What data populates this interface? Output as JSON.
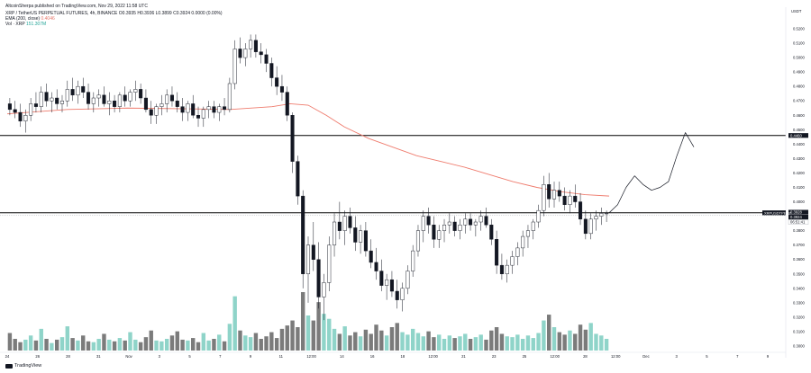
{
  "header": {
    "published": "AltcoinSherpa published on TradingView.com, Nov 29, 2022 11:58 UTC",
    "symbol_line": "XRP / TetherUS PERPETUAL FUTURES, 4h, BINANCE O0.3935 H0.3936 L0.3899 C0.3924 0.0000 (0.00%)",
    "ema_label": "EMA (200, close)",
    "ema_value": "0.4046",
    "vol_label": "Vol · XRP",
    "vol_value": "151.307M"
  },
  "currency_label": "USDT",
  "footer": {
    "brand": "TradingView"
  },
  "colors": {
    "up": "#26a69a",
    "down": "#131722",
    "ema": "#ef7c6e",
    "volume_up": "#8fd4c9",
    "volume_down": "#7b7b7b",
    "line": "#000000"
  },
  "chart_data": {
    "type": "candlestick",
    "timeframe": "4h",
    "y_ticks": [
      "0.5200",
      "0.5100",
      "0.5000",
      "0.4900",
      "0.4800",
      "0.4700",
      "0.4600",
      "0.4500",
      "0.4400",
      "0.4300",
      "0.4200",
      "0.4100",
      "0.4000",
      "0.3900",
      "0.3800",
      "0.3700",
      "0.3600",
      "0.3500",
      "0.3400",
      "0.3300",
      "0.3200",
      "0.3100",
      "0.3000"
    ],
    "x_ticks": [
      "24",
      "26",
      "28",
      "31",
      "Nov",
      "3",
      "5",
      "7",
      "9",
      "11",
      "12:00",
      "14",
      "16",
      "18",
      "12:00",
      "21",
      "23",
      "25",
      "12:00",
      "28",
      "12:00",
      "Dec",
      "3",
      "5",
      "7",
      "9"
    ],
    "price_markers": [
      {
        "label": "0.4460",
        "value": 0.446,
        "style": "dark"
      },
      {
        "label": "0.3928",
        "value": 0.3928,
        "style": "dark"
      },
      {
        "label": "0.3924",
        "value": 0.3924,
        "style": "dark"
      },
      {
        "label": "06:51:41",
        "value": 0.3905,
        "style": "light"
      }
    ],
    "pair_tag": "XRPUSDTPERP",
    "horizontal_lines": [
      0.446,
      0.3924
    ],
    "candles_ohlc": [
      [
        0.468,
        0.472,
        0.46,
        0.464
      ],
      [
        0.464,
        0.47,
        0.458,
        0.462
      ],
      [
        0.462,
        0.468,
        0.452,
        0.456
      ],
      [
        0.456,
        0.464,
        0.448,
        0.46
      ],
      [
        0.46,
        0.472,
        0.456,
        0.468
      ],
      [
        0.468,
        0.476,
        0.462,
        0.466
      ],
      [
        0.466,
        0.48,
        0.462,
        0.476
      ],
      [
        0.476,
        0.482,
        0.466,
        0.47
      ],
      [
        0.47,
        0.476,
        0.462,
        0.472
      ],
      [
        0.472,
        0.478,
        0.464,
        0.468
      ],
      [
        0.468,
        0.474,
        0.462,
        0.47
      ],
      [
        0.47,
        0.484,
        0.466,
        0.478
      ],
      [
        0.478,
        0.486,
        0.47,
        0.474
      ],
      [
        0.474,
        0.484,
        0.468,
        0.48
      ],
      [
        0.48,
        0.486,
        0.472,
        0.476
      ],
      [
        0.476,
        0.482,
        0.464,
        0.468
      ],
      [
        0.468,
        0.476,
        0.462,
        0.472
      ],
      [
        0.472,
        0.478,
        0.466,
        0.474
      ],
      [
        0.474,
        0.48,
        0.466,
        0.468
      ],
      [
        0.468,
        0.476,
        0.46,
        0.47
      ],
      [
        0.47,
        0.474,
        0.462,
        0.466
      ],
      [
        0.466,
        0.476,
        0.462,
        0.474
      ],
      [
        0.474,
        0.48,
        0.466,
        0.47
      ],
      [
        0.47,
        0.478,
        0.466,
        0.476
      ],
      [
        0.476,
        0.484,
        0.47,
        0.478
      ],
      [
        0.478,
        0.482,
        0.468,
        0.472
      ],
      [
        0.472,
        0.478,
        0.462,
        0.464
      ],
      [
        0.464,
        0.47,
        0.454,
        0.46
      ],
      [
        0.46,
        0.468,
        0.454,
        0.466
      ],
      [
        0.466,
        0.474,
        0.46,
        0.468
      ],
      [
        0.468,
        0.478,
        0.462,
        0.474
      ],
      [
        0.474,
        0.48,
        0.466,
        0.47
      ],
      [
        0.47,
        0.476,
        0.462,
        0.466
      ],
      [
        0.466,
        0.472,
        0.456,
        0.462
      ],
      [
        0.462,
        0.47,
        0.456,
        0.468
      ],
      [
        0.468,
        0.474,
        0.458,
        0.46
      ],
      [
        0.46,
        0.466,
        0.452,
        0.458
      ],
      [
        0.458,
        0.466,
        0.452,
        0.464
      ],
      [
        0.464,
        0.47,
        0.458,
        0.466
      ],
      [
        0.466,
        0.47,
        0.458,
        0.462
      ],
      [
        0.462,
        0.468,
        0.456,
        0.466
      ],
      [
        0.466,
        0.472,
        0.46,
        0.464
      ],
      [
        0.464,
        0.486,
        0.462,
        0.482
      ],
      [
        0.482,
        0.512,
        0.478,
        0.506
      ],
      [
        0.506,
        0.514,
        0.496,
        0.5
      ],
      [
        0.5,
        0.51,
        0.494,
        0.506
      ],
      [
        0.506,
        0.516,
        0.5,
        0.512
      ],
      [
        0.512,
        0.516,
        0.5,
        0.504
      ],
      [
        0.504,
        0.51,
        0.496,
        0.502
      ],
      [
        0.502,
        0.506,
        0.49,
        0.496
      ],
      [
        0.496,
        0.5,
        0.48,
        0.486
      ],
      [
        0.486,
        0.494,
        0.474,
        0.48
      ],
      [
        0.48,
        0.488,
        0.47,
        0.476
      ],
      [
        0.476,
        0.48,
        0.456,
        0.46
      ],
      [
        0.46,
        0.462,
        0.42,
        0.428
      ],
      [
        0.428,
        0.432,
        0.398,
        0.404
      ],
      [
        0.404,
        0.408,
        0.34,
        0.35
      ],
      [
        0.35,
        0.376,
        0.33,
        0.37
      ],
      [
        0.37,
        0.386,
        0.352,
        0.36
      ],
      [
        0.36,
        0.372,
        0.326,
        0.334
      ],
      [
        0.334,
        0.35,
        0.318,
        0.344
      ],
      [
        0.344,
        0.376,
        0.338,
        0.37
      ],
      [
        0.37,
        0.392,
        0.362,
        0.386
      ],
      [
        0.386,
        0.4,
        0.374,
        0.38
      ],
      [
        0.38,
        0.394,
        0.37,
        0.39
      ],
      [
        0.39,
        0.396,
        0.378,
        0.382
      ],
      [
        0.382,
        0.39,
        0.366,
        0.372
      ],
      [
        0.372,
        0.384,
        0.364,
        0.38
      ],
      [
        0.38,
        0.386,
        0.362,
        0.366
      ],
      [
        0.366,
        0.374,
        0.354,
        0.358
      ],
      [
        0.358,
        0.368,
        0.346,
        0.352
      ],
      [
        0.352,
        0.36,
        0.338,
        0.342
      ],
      [
        0.342,
        0.35,
        0.332,
        0.346
      ],
      [
        0.346,
        0.352,
        0.334,
        0.338
      ],
      [
        0.338,
        0.346,
        0.326,
        0.332
      ],
      [
        0.332,
        0.344,
        0.324,
        0.34
      ],
      [
        0.34,
        0.356,
        0.336,
        0.352
      ],
      [
        0.352,
        0.37,
        0.348,
        0.366
      ],
      [
        0.366,
        0.384,
        0.362,
        0.38
      ],
      [
        0.38,
        0.394,
        0.372,
        0.39
      ],
      [
        0.39,
        0.396,
        0.378,
        0.384
      ],
      [
        0.384,
        0.39,
        0.368,
        0.374
      ],
      [
        0.374,
        0.384,
        0.368,
        0.38
      ],
      [
        0.38,
        0.388,
        0.372,
        0.384
      ],
      [
        0.384,
        0.392,
        0.378,
        0.386
      ],
      [
        0.386,
        0.39,
        0.376,
        0.38
      ],
      [
        0.38,
        0.388,
        0.374,
        0.384
      ],
      [
        0.384,
        0.392,
        0.378,
        0.388
      ],
      [
        0.388,
        0.392,
        0.38,
        0.384
      ],
      [
        0.384,
        0.388,
        0.376,
        0.386
      ],
      [
        0.386,
        0.394,
        0.38,
        0.39
      ],
      [
        0.39,
        0.396,
        0.382,
        0.384
      ],
      [
        0.384,
        0.388,
        0.37,
        0.374
      ],
      [
        0.374,
        0.38,
        0.35,
        0.356
      ],
      [
        0.356,
        0.364,
        0.346,
        0.35
      ],
      [
        0.35,
        0.36,
        0.344,
        0.356
      ],
      [
        0.356,
        0.366,
        0.35,
        0.362
      ],
      [
        0.362,
        0.372,
        0.356,
        0.368
      ],
      [
        0.368,
        0.38,
        0.362,
        0.376
      ],
      [
        0.376,
        0.384,
        0.368,
        0.38
      ],
      [
        0.38,
        0.388,
        0.374,
        0.386
      ],
      [
        0.386,
        0.398,
        0.382,
        0.394
      ],
      [
        0.394,
        0.418,
        0.39,
        0.412
      ],
      [
        0.412,
        0.42,
        0.396,
        0.402
      ],
      [
        0.402,
        0.414,
        0.396,
        0.408
      ],
      [
        0.408,
        0.414,
        0.4,
        0.404
      ],
      [
        0.404,
        0.41,
        0.394,
        0.398
      ],
      [
        0.398,
        0.408,
        0.392,
        0.404
      ],
      [
        0.404,
        0.412,
        0.396,
        0.4
      ],
      [
        0.4,
        0.406,
        0.384,
        0.388
      ],
      [
        0.388,
        0.394,
        0.374,
        0.378
      ],
      [
        0.378,
        0.392,
        0.374,
        0.388
      ],
      [
        0.388,
        0.394,
        0.38,
        0.39
      ],
      [
        0.39,
        0.396,
        0.384,
        0.392
      ],
      [
        0.392,
        0.394,
        0.386,
        0.392
      ]
    ],
    "volumes": [
      2.1,
      1.4,
      1.0,
      1.3,
      1.8,
      1.2,
      2.6,
      1.4,
      0.9,
      1.3,
      1.6,
      2.9,
      1.5,
      1.2,
      1.8,
      1.1,
      1.0,
      1.4,
      2.0,
      1.3,
      1.1,
      1.5,
      1.2,
      2.2,
      1.3,
      1.0,
      1.6,
      2.4,
      1.2,
      1.1,
      1.4,
      1.8,
      2.3,
      1.3,
      1.2,
      1.5,
      1.0,
      2.1,
      1.2,
      1.4,
      1.9,
      1.1,
      3.2,
      6.5,
      2.4,
      1.8,
      1.6,
      2.1,
      1.4,
      1.7,
      2.2,
      1.5,
      2.6,
      3.0,
      3.6,
      2.8,
      7.0,
      4.2,
      3.6,
      5.8,
      4.4,
      3.8,
      2.6,
      2.0,
      2.9,
      1.8,
      2.2,
      1.7,
      2.5,
      2.0,
      3.1,
      2.4,
      1.8,
      2.8,
      3.3,
      2.2,
      1.9,
      2.6,
      2.1,
      1.7,
      2.3,
      1.6,
      1.9,
      1.4,
      1.8,
      1.5,
      1.7,
      2.0,
      1.4,
      1.6,
      1.9,
      1.3,
      2.4,
      2.8,
      2.0,
      1.7,
      1.6,
      1.9,
      1.4,
      1.8,
      1.5,
      2.1,
      3.6,
      4.3,
      2.8,
      2.2,
      1.9,
      2.4,
      2.0,
      3.1,
      2.5,
      3.3,
      2.0,
      1.8,
      1.4
    ],
    "ema_200": [
      [
        0,
        0.461
      ],
      [
        0.1,
        0.464
      ],
      [
        0.2,
        0.465
      ],
      [
        0.3,
        0.4645
      ],
      [
        0.37,
        0.464
      ],
      [
        0.44,
        0.466
      ],
      [
        0.47,
        0.468
      ],
      [
        0.5,
        0.467
      ],
      [
        0.53,
        0.46
      ],
      [
        0.56,
        0.452
      ],
      [
        0.6,
        0.444
      ],
      [
        0.64,
        0.438
      ],
      [
        0.68,
        0.432
      ],
      [
        0.72,
        0.428
      ],
      [
        0.76,
        0.424
      ],
      [
        0.8,
        0.419
      ],
      [
        0.84,
        0.414
      ],
      [
        0.88,
        0.41
      ],
      [
        0.92,
        0.407
      ],
      [
        0.96,
        0.405
      ],
      [
        1.0,
        0.404
      ]
    ],
    "projection_path": [
      [
        0.3924,
        0
      ],
      [
        0.398,
        1
      ],
      [
        0.41,
        2
      ],
      [
        0.418,
        3
      ],
      [
        0.412,
        4
      ],
      [
        0.408,
        5
      ],
      [
        0.41,
        6
      ],
      [
        0.414,
        7
      ],
      [
        0.432,
        8
      ],
      [
        0.448,
        9
      ],
      [
        0.438,
        10
      ]
    ]
  }
}
